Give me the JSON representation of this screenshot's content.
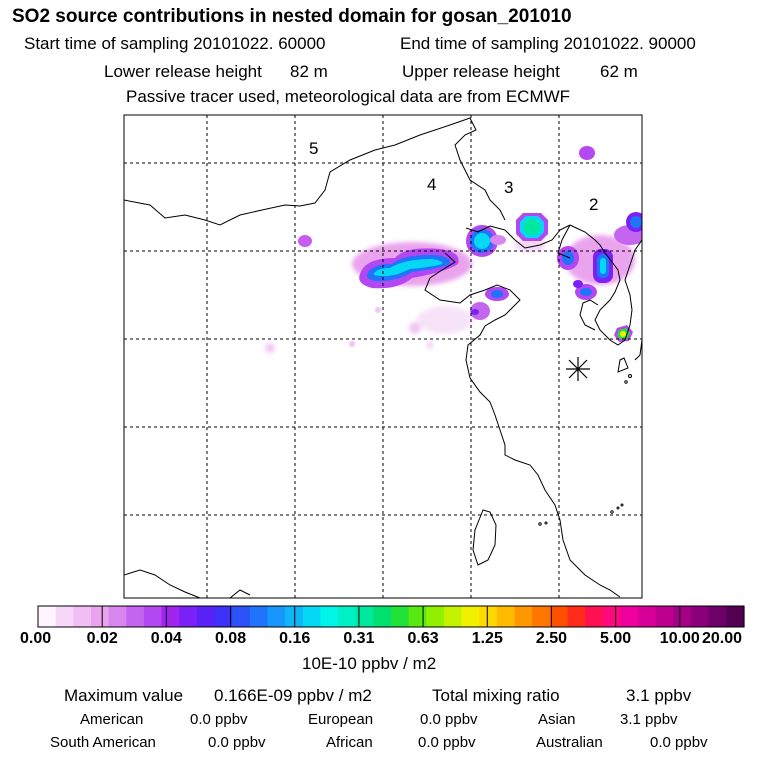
{
  "header": {
    "title": "SO2 source contributions in nested domain for gosan_201010",
    "start_label": "Start time of sampling 20101022. 60000",
    "end_label": "End time of sampling 20101022. 90000",
    "lower_label": "Lower release height",
    "lower_value": "82 m",
    "upper_label": "Upper release height",
    "upper_value": "62 m",
    "passive_note": "Passive tracer used, meteorological data are from ECMWF"
  },
  "map": {
    "sector_labels": [
      {
        "text": "5"
      },
      {
        "text": "4"
      },
      {
        "text": "3"
      },
      {
        "text": "2"
      }
    ],
    "receptor_marker": "asterisk-icon"
  },
  "colorbar": {
    "colors": [
      "#fff4ff",
      "#f8d8fa",
      "#f2bdf4",
      "#eaa4ee",
      "#d885ef",
      "#c465f0",
      "#b347f2",
      "#a224f0",
      "#7a22f5",
      "#5a22f6",
      "#3f32f7",
      "#2c52f8",
      "#1f74fa",
      "#1796fb",
      "#10b6f7",
      "#05d8f5",
      "#00f4e8",
      "#00f0c5",
      "#00e8a0",
      "#00e070",
      "#22e23a",
      "#58ea10",
      "#90f000",
      "#c4f200",
      "#f0f000",
      "#ffd800",
      "#ffbb00",
      "#ff9800",
      "#ff7600",
      "#ff5000",
      "#ff2c1c",
      "#ff1050",
      "#ff0880",
      "#f000a0",
      "#d60098",
      "#be0090",
      "#a50088",
      "#8a007a",
      "#6e0068",
      "#520050"
    ],
    "tick_labels": [
      "0.00",
      "0.02",
      "0.04",
      "0.08",
      "0.16",
      "0.31",
      "0.63",
      "1.25",
      "2.50",
      "5.00",
      "10.00",
      "20.00"
    ],
    "unit": "10E-10 ppbv / m2"
  },
  "footer": {
    "max_label": "Maximum value",
    "max_value": "0.166E-09 ppbv / m2",
    "total_label": "Total mixing ratio",
    "total_value": "3.1 ppbv",
    "regions": [
      {
        "name": "American",
        "value": "0.0 ppbv"
      },
      {
        "name": "European",
        "value": "0.0 ppbv"
      },
      {
        "name": "Asian",
        "value": "3.1 ppbv"
      },
      {
        "name": "South American",
        "value": "0.0 ppbv"
      },
      {
        "name": "African",
        "value": "0.0 ppbv"
      },
      {
        "name": "Australian",
        "value": "0.0 ppbv"
      }
    ]
  }
}
